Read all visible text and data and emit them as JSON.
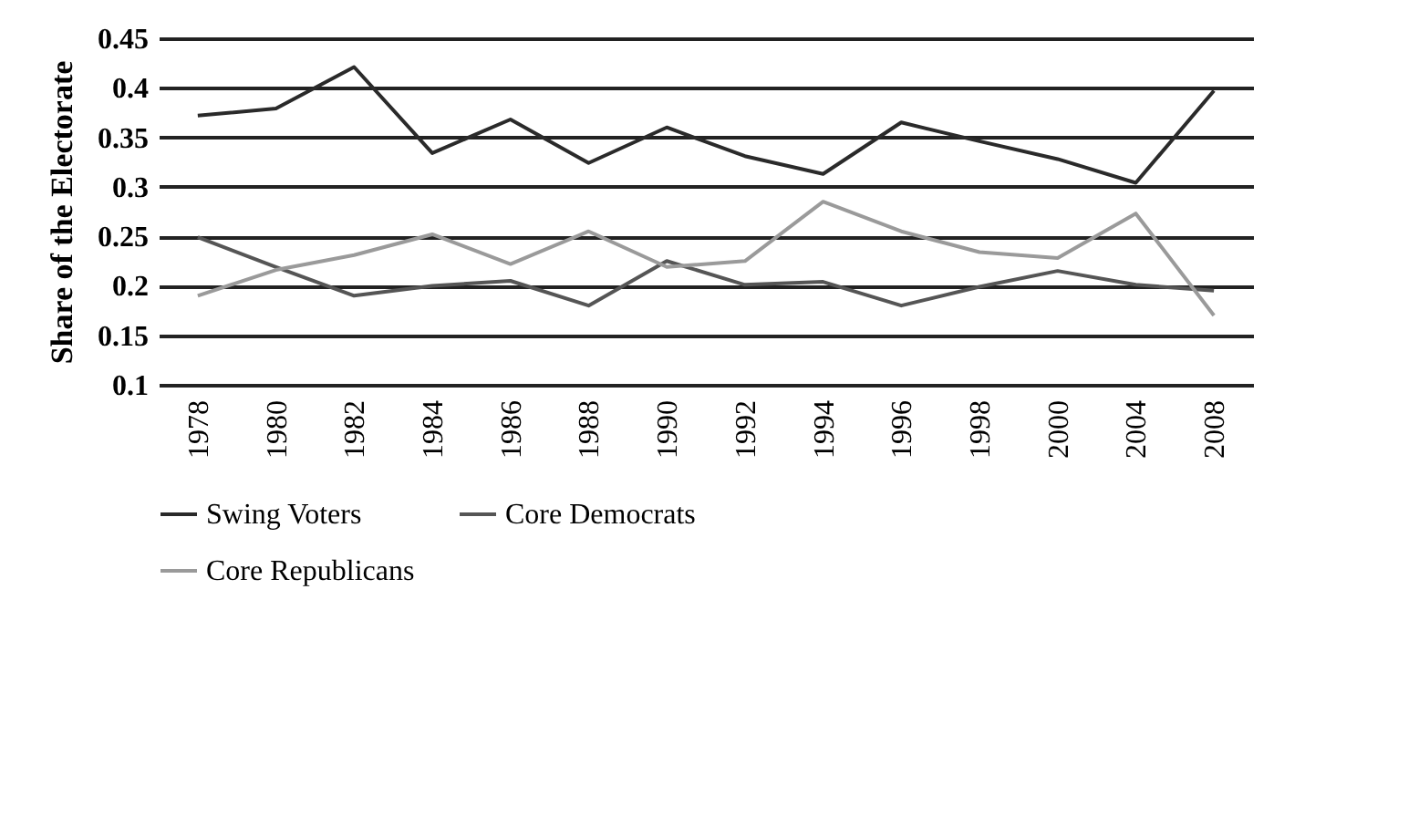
{
  "chart_data": {
    "type": "line",
    "ylabel": "Share of the Electorate",
    "categories": [
      "1978",
      "1980",
      "1982",
      "1984",
      "1986",
      "1988",
      "1990",
      "1992",
      "1994",
      "1996",
      "1998",
      "2000",
      "2004",
      "2008"
    ],
    "series": [
      {
        "name": "Swing Voters",
        "color": "#2a2a2a",
        "values": [
          0.372,
          0.379,
          0.421,
          0.334,
          0.368,
          0.324,
          0.36,
          0.331,
          0.313,
          0.365,
          0.346,
          0.328,
          0.304,
          0.397
        ]
      },
      {
        "name": "Core Democrats",
        "color": "#555555",
        "values": [
          0.249,
          0.219,
          0.19,
          0.2,
          0.205,
          0.18,
          0.225,
          0.201,
          0.204,
          0.18,
          0.199,
          0.215,
          0.201,
          0.195
        ]
      },
      {
        "name": "Core Republicans",
        "color": "#9a9a9a",
        "values": [
          0.19,
          0.216,
          0.231,
          0.252,
          0.222,
          0.255,
          0.219,
          0.225,
          0.285,
          0.255,
          0.234,
          0.228,
          0.273,
          0.17
        ]
      }
    ],
    "ylim": [
      0.1,
      0.45
    ],
    "yticks": [
      0.1,
      0.15,
      0.2,
      0.25,
      0.3,
      0.35,
      0.4,
      0.45
    ],
    "grid": "y",
    "legend": "bottom",
    "marker": "none",
    "line_style": "solid"
  }
}
